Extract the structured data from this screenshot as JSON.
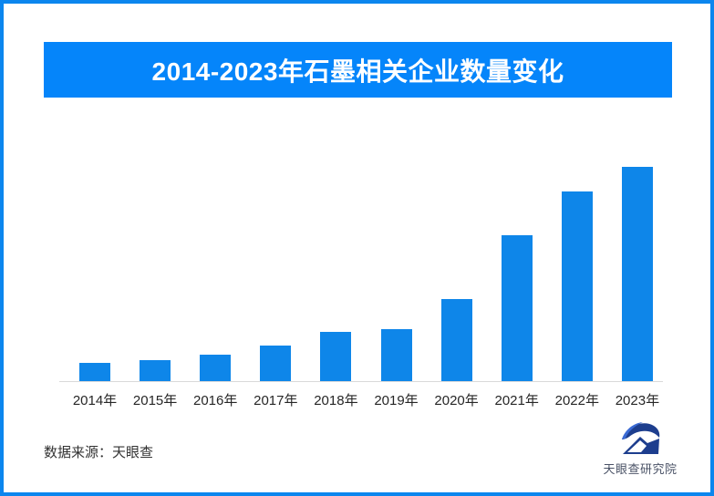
{
  "page": {
    "background_color": "#ffffff",
    "border_color": "#0c86ee"
  },
  "header": {
    "title": "2014-2023年石墨相关企业数量变化",
    "banner_color": "#0585fa",
    "title_color": "#ffffff"
  },
  "chart_data": {
    "type": "bar",
    "title": "2014-2023年石墨相关企业数量变化",
    "categories": [
      "2014年",
      "2015年",
      "2016年",
      "2017年",
      "2018年",
      "2019年",
      "2020年",
      "2021年",
      "2022年",
      "2023年"
    ],
    "values": [
      8.5,
      9.8,
      12.3,
      16.6,
      23.0,
      24.3,
      38.3,
      68.1,
      88.5,
      100.0
    ],
    "xlabel": "",
    "ylabel": "",
    "ylim": [
      0,
      100
    ],
    "grid": false,
    "legend": false,
    "bar_color": "#0e86e9",
    "axis_line_color": "#d9d9d9",
    "tick_label_color": "#262626"
  },
  "footer": {
    "source_label": "数据来源：天眼查",
    "brand_name": "天眼查研究院",
    "brand_color": "#4a5266",
    "logo_navy": "#1d3e8e",
    "logo_accent": "#3a6ad4"
  }
}
